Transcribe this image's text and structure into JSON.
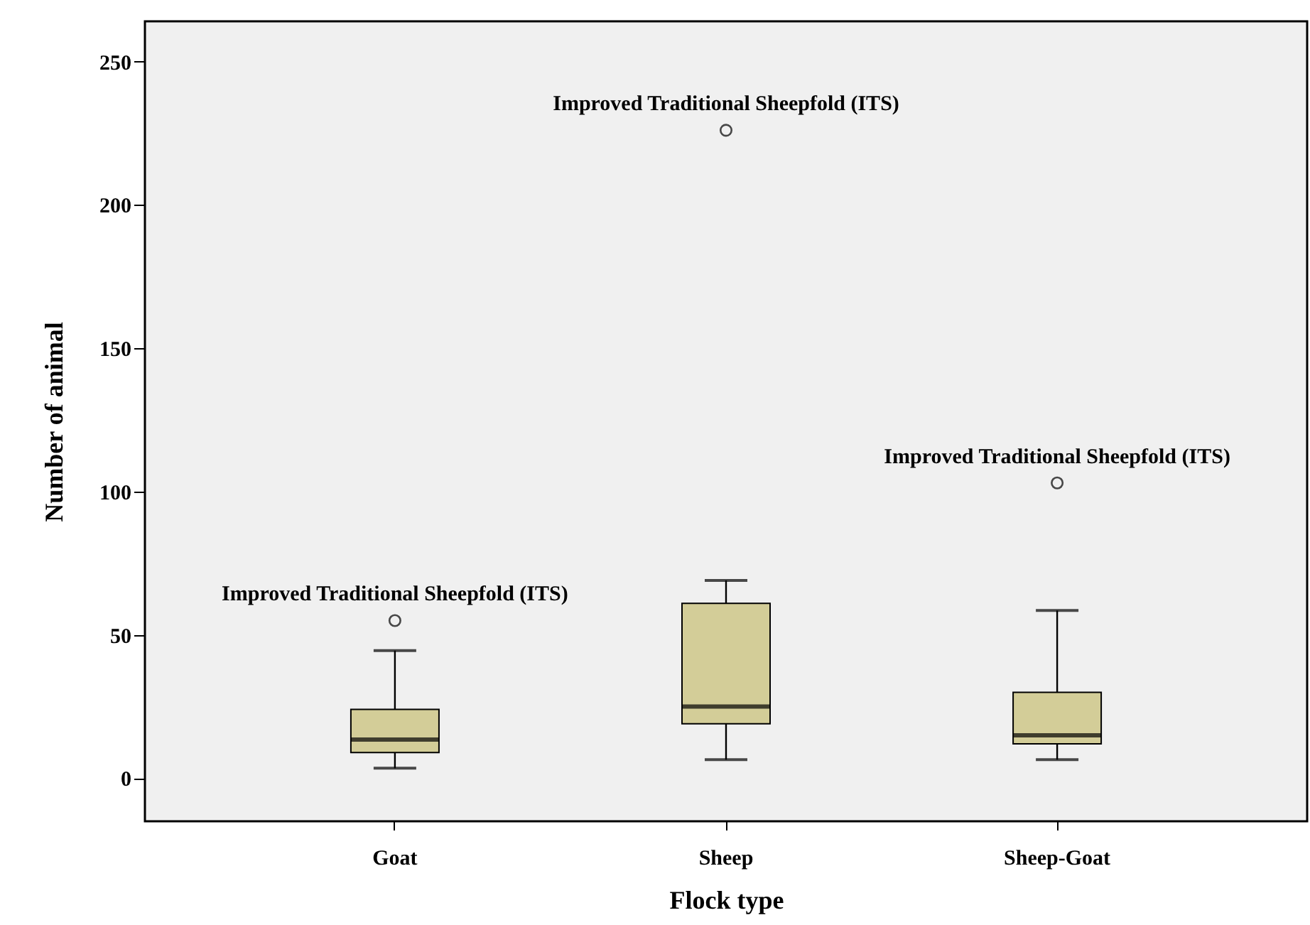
{
  "chart_data": {
    "type": "box",
    "xlabel": "Flock type",
    "ylabel": "Number of animal",
    "categories": [
      "Goat",
      "Sheep",
      "Sheep-Goat"
    ],
    "boxes": [
      {
        "low": 3.5,
        "q1": 9,
        "median": 13.5,
        "q3": 24,
        "high": 44.5,
        "outliers": [
          55
        ]
      },
      {
        "low": 6.5,
        "q1": 19,
        "median": 25,
        "q3": 61,
        "high": 69,
        "outliers": [
          226
        ]
      },
      {
        "low": 6.5,
        "q1": 12,
        "median": 15,
        "q3": 30,
        "high": 58.5,
        "outliers": [
          103
        ]
      }
    ],
    "color": "#d3cd98",
    "ylim": [
      -15,
      264
    ],
    "yticks": [
      0,
      50,
      100,
      150,
      200,
      250
    ],
    "grid": false,
    "annotations": [
      "Improved Traditional Sheepfold (ITS)",
      "Improved Traditional Sheepfold (ITS)",
      "Improved Traditional Sheepfold (ITS)"
    ]
  }
}
